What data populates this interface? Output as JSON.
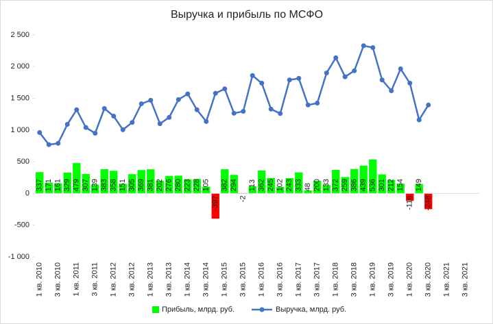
{
  "chart_data": {
    "type": "bar_line",
    "title": "Выручка и прибыль по МСФО",
    "categories": [
      "1 кв. 2010",
      null,
      "3 кв. 2010",
      null,
      "1 кв. 2011",
      null,
      "3 кв. 2011",
      null,
      "1 кв. 2012",
      null,
      "3 кв. 2012",
      null,
      "1 кв. 2013",
      null,
      "3 кв. 2013",
      null,
      "1 кв. 2014",
      null,
      "3 кв. 2014",
      null,
      "1 кв. 2015",
      null,
      "3 кв. 2015",
      null,
      "1 кв. 2016",
      null,
      "3 кв. 2016",
      null,
      "1 кв. 2017",
      null,
      "3 кв. 2017",
      null,
      "1 кв. 2018",
      null,
      "3 кв. 2018",
      null,
      "1 кв. 2019",
      null,
      "3 кв. 2019",
      null,
      "1 кв. 2020",
      null,
      "3 кв. 2020",
      null,
      "1 кв. 2021",
      null,
      "3 кв. 2021",
      null
    ],
    "series": [
      {
        "name": "Прибыль, млрд. руб.",
        "kind": "bar",
        "color": "#00ff00",
        "negative_color": "#ff0000",
        "values": [
          337,
          171,
          161,
          329,
          479,
          307,
          139,
          383,
          358,
          151,
          305,
          369,
          381,
          202,
          276,
          280,
          223,
          228,
          105,
          -397,
          382,
          294,
          -2,
          113,
          362,
          245,
          102,
          243,
          333,
          48,
          200,
          133,
          372,
          259,
          386,
          439,
          536,
          301,
          212,
          154,
          -116,
          149,
          -248,
          null,
          null,
          null,
          null,
          null
        ]
      },
      {
        "name": "Выручка, млрд. руб.",
        "kind": "line",
        "color": "#4472c4",
        "values": [
          960,
          770,
          790,
          1090,
          1320,
          1040,
          950,
          1340,
          1220,
          1005,
          1120,
          1415,
          1470,
          1100,
          1200,
          1480,
          1570,
          1320,
          1135,
          1580,
          1650,
          1265,
          1295,
          1860,
          1740,
          1330,
          1260,
          1790,
          1815,
          1395,
          1425,
          1900,
          2140,
          1840,
          1935,
          2330,
          2300,
          1790,
          1620,
          1965,
          1740,
          1160,
          1395,
          null,
          null,
          null,
          null,
          null
        ]
      }
    ],
    "ylim": [
      -1000,
      2500
    ],
    "yticks": [
      {
        "value": -1000,
        "label": "-1 000"
      },
      -500,
      0,
      500,
      {
        "value": 1000,
        "label": "1 000"
      },
      {
        "value": 1500,
        "label": "1 500"
      },
      {
        "value": 2000,
        "label": "2 000"
      },
      {
        "value": 2500,
        "label": "2 500"
      }
    ],
    "grid": false,
    "legend": "bottom"
  }
}
